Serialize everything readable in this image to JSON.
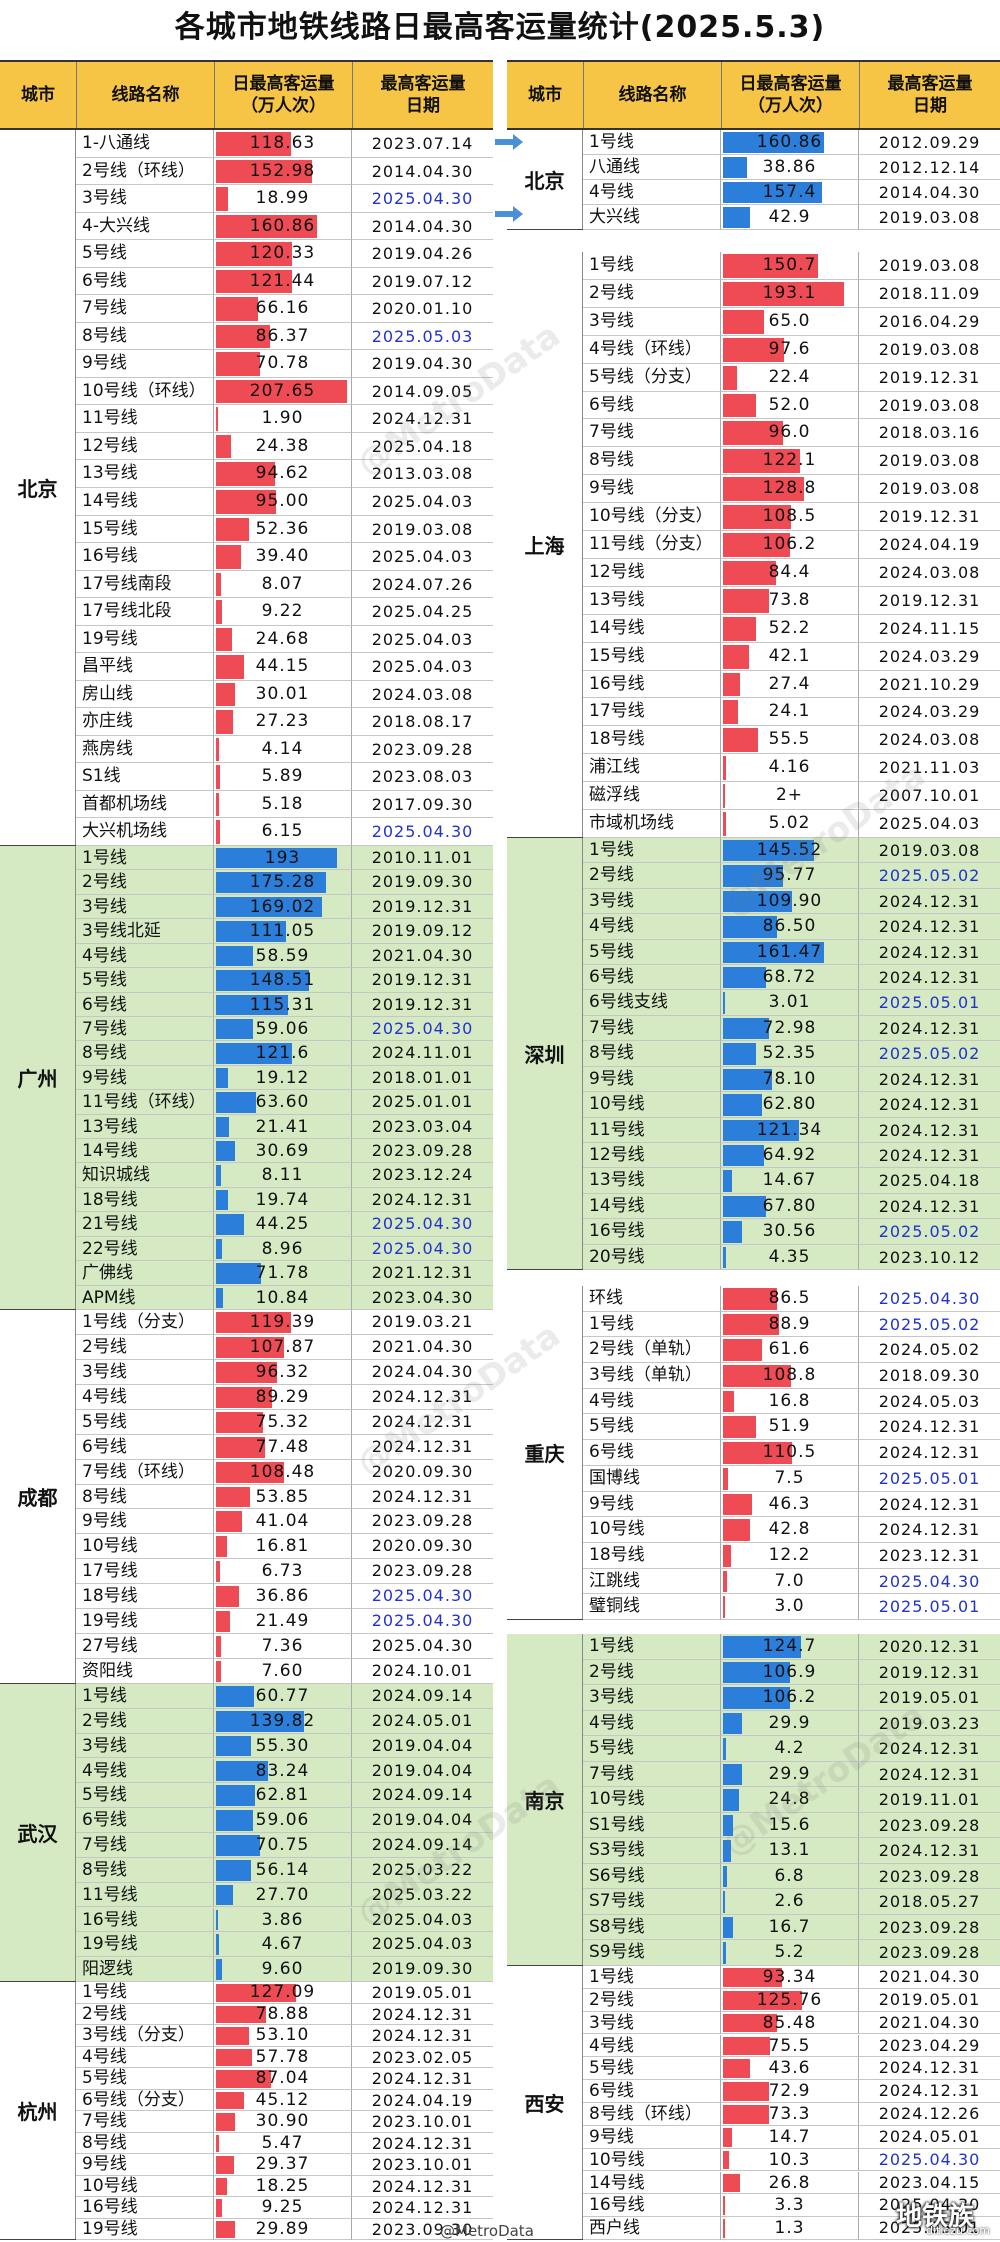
{
  "title": "各城市地铁线路日最高客运量统计(2025.5.3)",
  "headers": [
    "城市",
    "线路名称",
    "日最高客运量\n（万人次）",
    "最高客运量\n日期"
  ],
  "colors": {
    "red_bar": "#ef4b55",
    "blue_bar": "#2b7fdb",
    "header_bg": "#f6c545",
    "green_bg": "#d5e9c3",
    "highlight_date": "#2233cc"
  },
  "left": [
    {
      "city": "北京",
      "bg": "white",
      "color": "red",
      "rows": [
        {
          "name": "1-八通线",
          "value": "118.63",
          "date": "2023.07.14"
        },
        {
          "name": "2号线（环线）",
          "value": "152.98",
          "date": "2014.04.30"
        },
        {
          "name": "3号线",
          "value": "18.99",
          "date": "2025.04.30",
          "hl": true
        },
        {
          "name": "4-大兴线",
          "value": "160.86",
          "date": "2014.04.30"
        },
        {
          "name": "5号线",
          "value": "120.33",
          "date": "2019.04.26"
        },
        {
          "name": "6号线",
          "value": "121.44",
          "date": "2019.07.12"
        },
        {
          "name": "7号线",
          "value": "66.16",
          "date": "2020.01.10"
        },
        {
          "name": "8号线",
          "value": "86.37",
          "date": "2025.05.03",
          "hl": true
        },
        {
          "name": "9号线",
          "value": "70.78",
          "date": "2019.04.30"
        },
        {
          "name": "10号线（环线）",
          "value": "207.65",
          "date": "2014.09.05"
        },
        {
          "name": "11号线",
          "value": "1.90",
          "date": "2024.12.31"
        },
        {
          "name": "12号线",
          "value": "24.38",
          "date": "2025.04.18"
        },
        {
          "name": "13号线",
          "value": "94.62",
          "date": "2013.03.08"
        },
        {
          "name": "14号线",
          "value": "95.00",
          "date": "2025.04.03"
        },
        {
          "name": "15号线",
          "value": "52.36",
          "date": "2019.03.08"
        },
        {
          "name": "16号线",
          "value": "39.40",
          "date": "2025.04.03"
        },
        {
          "name": "17号线南段",
          "value": "8.07",
          "date": "2024.07.26"
        },
        {
          "name": "17号线北段",
          "value": "9.22",
          "date": "2025.04.25"
        },
        {
          "name": "19号线",
          "value": "24.68",
          "date": "2025.04.03"
        },
        {
          "name": "昌平线",
          "value": "44.15",
          "date": "2025.04.03"
        },
        {
          "name": "房山线",
          "value": "30.01",
          "date": "2024.03.08"
        },
        {
          "name": "亦庄线",
          "value": "27.23",
          "date": "2018.08.17"
        },
        {
          "name": "燕房线",
          "value": "4.14",
          "date": "2023.09.28"
        },
        {
          "name": "S1线",
          "value": "5.89",
          "date": "2023.08.03"
        },
        {
          "name": "首都机场线",
          "value": "5.18",
          "date": "2017.09.30"
        },
        {
          "name": "大兴机场线",
          "value": "6.15",
          "date": "2025.04.30",
          "hl": true
        }
      ]
    },
    {
      "city": "广州",
      "bg": "green",
      "color": "blue",
      "rows": [
        {
          "name": "1号线",
          "value": "193",
          "date": "2010.11.01"
        },
        {
          "name": "2号线",
          "value": "175.28",
          "date": "2019.09.30"
        },
        {
          "name": "3号线",
          "value": "169.02",
          "date": "2019.12.31"
        },
        {
          "name": "3号线北延",
          "value": "111.05",
          "date": "2019.09.12"
        },
        {
          "name": "4号线",
          "value": "58.59",
          "date": "2021.04.30"
        },
        {
          "name": "5号线",
          "value": "148.51",
          "date": "2019.12.31"
        },
        {
          "name": "6号线",
          "value": "115.31",
          "date": "2019.12.31"
        },
        {
          "name": "7号线",
          "value": "59.06",
          "date": "2025.04.30",
          "hl": true
        },
        {
          "name": "8号线",
          "value": "121.6",
          "date": "2024.11.01"
        },
        {
          "name": "9号线",
          "value": "19.12",
          "date": "2018.01.01"
        },
        {
          "name": "11号线（环线）",
          "value": "63.60",
          "date": "2025.01.01"
        },
        {
          "name": "13号线",
          "value": "21.41",
          "date": "2023.03.04"
        },
        {
          "name": "14号线",
          "value": "30.69",
          "date": "2023.09.28"
        },
        {
          "name": "知识城线",
          "value": "8.11",
          "date": "2023.12.24"
        },
        {
          "name": "18号线",
          "value": "19.74",
          "date": "2024.12.31"
        },
        {
          "name": "21号线",
          "value": "44.25",
          "date": "2025.04.30",
          "hl": true
        },
        {
          "name": "22号线",
          "value": "8.96",
          "date": "2025.04.30",
          "hl": true
        },
        {
          "name": "广佛线",
          "value": "71.78",
          "date": "2021.12.31"
        },
        {
          "name": "APM线",
          "value": "10.84",
          "date": "2023.04.30"
        }
      ]
    },
    {
      "city": "成都",
      "bg": "white",
      "color": "red",
      "rows": [
        {
          "name": "1号线（分支）",
          "value": "119.39",
          "date": "2019.03.21"
        },
        {
          "name": "2号线",
          "value": "107.87",
          "date": "2021.04.30"
        },
        {
          "name": "3号线",
          "value": "96.32",
          "date": "2024.04.30"
        },
        {
          "name": "4号线",
          "value": "89.29",
          "date": "2024.12.31"
        },
        {
          "name": "5号线",
          "value": "75.32",
          "date": "2024.12.31"
        },
        {
          "name": "6号线",
          "value": "77.48",
          "date": "2024.12.31"
        },
        {
          "name": "7号线（环线）",
          "value": "108.48",
          "date": "2020.09.30"
        },
        {
          "name": "8号线",
          "value": "53.85",
          "date": "2024.12.31"
        },
        {
          "name": "9号线",
          "value": "41.04",
          "date": "2023.09.28"
        },
        {
          "name": "10号线",
          "value": "16.81",
          "date": "2020.09.30"
        },
        {
          "name": "17号线",
          "value": "6.73",
          "date": "2023.09.28"
        },
        {
          "name": "18号线",
          "value": "36.86",
          "date": "2025.04.30",
          "hl": true
        },
        {
          "name": "19号线",
          "value": "21.49",
          "date": "2025.04.30",
          "hl": true
        },
        {
          "name": "27号线",
          "value": "7.36",
          "date": "2025.04.30"
        },
        {
          "name": "资阳线",
          "value": "7.60",
          "date": "2024.10.01"
        }
      ]
    },
    {
      "city": "武汉",
      "bg": "green",
      "color": "blue",
      "rows": [
        {
          "name": "1号线",
          "value": "60.77",
          "date": "2024.09.14"
        },
        {
          "name": "2号线",
          "value": "139.82",
          "date": "2024.05.01"
        },
        {
          "name": "3号线",
          "value": "55.30",
          "date": "2019.04.04"
        },
        {
          "name": "4号线",
          "value": "83.24",
          "date": "2019.04.04"
        },
        {
          "name": "5号线",
          "value": "62.81",
          "date": "2024.09.14"
        },
        {
          "name": "6号线",
          "value": "59.06",
          "date": "2019.04.04"
        },
        {
          "name": "7号线",
          "value": "70.75",
          "date": "2024.09.14"
        },
        {
          "name": "8号线",
          "value": "56.14",
          "date": "2025.03.22"
        },
        {
          "name": "11号线",
          "value": "27.70",
          "date": "2025.03.22"
        },
        {
          "name": "16号线",
          "value": "3.86",
          "date": "2025.04.03"
        },
        {
          "name": "19号线",
          "value": "4.67",
          "date": "2025.04.03"
        },
        {
          "name": "阳逻线",
          "value": "9.60",
          "date": "2019.09.30"
        }
      ]
    },
    {
      "city": "杭州",
      "bg": "white",
      "color": "red",
      "rows": [
        {
          "name": "1号线",
          "value": "127.09",
          "date": "2019.05.01"
        },
        {
          "name": "2号线",
          "value": "78.88",
          "date": "2024.12.31"
        },
        {
          "name": "3号线（分支）",
          "value": "53.10",
          "date": "2024.12.31"
        },
        {
          "name": "4号线",
          "value": "57.78",
          "date": "2023.02.05"
        },
        {
          "name": "5号线",
          "value": "87.04",
          "date": "2024.12.31"
        },
        {
          "name": "6号线（分支）",
          "value": "45.12",
          "date": "2024.04.19"
        },
        {
          "name": "7号线",
          "value": "30.90",
          "date": "2023.10.01"
        },
        {
          "name": "8号线",
          "value": "5.47",
          "date": "2024.12.31"
        },
        {
          "name": "9号线",
          "value": "29.37",
          "date": "2023.10.01"
        },
        {
          "name": "10号线",
          "value": "18.25",
          "date": "2024.12.31"
        },
        {
          "name": "16号线",
          "value": "9.25",
          "date": "2024.12.31"
        },
        {
          "name": "19号线",
          "value": "29.89",
          "date": "2023.09.30"
        }
      ]
    }
  ],
  "right": [
    {
      "city": "北京",
      "bg": "white",
      "color": "blue",
      "rows": [
        {
          "name": "1号线",
          "value": "160.86",
          "date": "2012.09.29"
        },
        {
          "name": "八通线",
          "value": "38.86",
          "date": "2012.12.14"
        },
        {
          "name": "4号线",
          "value": "157.4",
          "date": "2014.04.30"
        },
        {
          "name": "大兴线",
          "value": "42.9",
          "date": "2019.03.08"
        }
      ]
    },
    {
      "city": "上海",
      "bg": "white",
      "color": "red",
      "rows": [
        {
          "name": "1号线",
          "value": "150.7",
          "date": "2019.03.08"
        },
        {
          "name": "2号线",
          "value": "193.1",
          "date": "2018.11.09"
        },
        {
          "name": "3号线",
          "value": "65.0",
          "date": "2016.04.29"
        },
        {
          "name": "4号线（环线）",
          "value": "97.6",
          "date": "2019.03.08"
        },
        {
          "name": "5号线（分支）",
          "value": "22.4",
          "date": "2019.12.31"
        },
        {
          "name": "6号线",
          "value": "52.0",
          "date": "2019.03.08"
        },
        {
          "name": "7号线",
          "value": "96.0",
          "date": "2018.03.16"
        },
        {
          "name": "8号线",
          "value": "122.1",
          "date": "2019.03.08"
        },
        {
          "name": "9号线",
          "value": "128.8",
          "date": "2019.03.08"
        },
        {
          "name": "10号线（分支）",
          "value": "108.5",
          "date": "2019.12.31"
        },
        {
          "name": "11号线（分支）",
          "value": "106.2",
          "date": "2024.04.19"
        },
        {
          "name": "12号线",
          "value": "84.4",
          "date": "2024.03.08"
        },
        {
          "name": "13号线",
          "value": "73.8",
          "date": "2019.12.31"
        },
        {
          "name": "14号线",
          "value": "52.2",
          "date": "2024.11.15"
        },
        {
          "name": "15号线",
          "value": "42.1",
          "date": "2024.03.29"
        },
        {
          "name": "16号线",
          "value": "27.4",
          "date": "2021.10.29"
        },
        {
          "name": "17号线",
          "value": "24.1",
          "date": "2024.03.29"
        },
        {
          "name": "18号线",
          "value": "55.5",
          "date": "2024.03.08"
        },
        {
          "name": "浦江线",
          "value": "4.16",
          "date": "2021.11.03"
        },
        {
          "name": "磁浮线",
          "value": "2+",
          "date": "2007.10.01"
        },
        {
          "name": "市域机场线",
          "value": "5.02",
          "date": "2025.04.03"
        }
      ]
    },
    {
      "city": "深圳",
      "bg": "green",
      "color": "blue",
      "rows": [
        {
          "name": "1号线",
          "value": "145.52",
          "date": "2019.03.08"
        },
        {
          "name": "2号线",
          "value": "95.77",
          "date": "2025.05.02",
          "hl": true
        },
        {
          "name": "3号线",
          "value": "109.90",
          "date": "2024.12.31"
        },
        {
          "name": "4号线",
          "value": "86.50",
          "date": "2024.12.31"
        },
        {
          "name": "5号线",
          "value": "161.47",
          "date": "2024.12.31"
        },
        {
          "name": "6号线",
          "value": "68.72",
          "date": "2024.12.31"
        },
        {
          "name": "6号线支线",
          "value": "3.01",
          "date": "2025.05.01",
          "hl": true
        },
        {
          "name": "7号线",
          "value": "72.98",
          "date": "2024.12.31"
        },
        {
          "name": "8号线",
          "value": "52.35",
          "date": "2025.05.02",
          "hl": true
        },
        {
          "name": "9号线",
          "value": "78.10",
          "date": "2024.12.31"
        },
        {
          "name": "10号线",
          "value": "62.80",
          "date": "2024.12.31"
        },
        {
          "name": "11号线",
          "value": "121.34",
          "date": "2024.12.31"
        },
        {
          "name": "12号线",
          "value": "64.92",
          "date": "2024.12.31"
        },
        {
          "name": "13号线",
          "value": "14.67",
          "date": "2025.04.18"
        },
        {
          "name": "14号线",
          "value": "67.80",
          "date": "2024.12.31"
        },
        {
          "name": "16号线",
          "value": "30.56",
          "date": "2025.05.02",
          "hl": true
        },
        {
          "name": "20号线",
          "value": "4.35",
          "date": "2023.10.12"
        }
      ]
    },
    {
      "city": "重庆",
      "bg": "white",
      "color": "red",
      "rows": [
        {
          "name": "环线",
          "value": "86.5",
          "date": "2025.04.30",
          "hl": true
        },
        {
          "name": "1号线",
          "value": "88.9",
          "date": "2025.05.02",
          "hl": true
        },
        {
          "name": "2号线（单轨）",
          "value": "61.6",
          "date": "2024.05.02"
        },
        {
          "name": "3号线（单轨）",
          "value": "108.8",
          "date": "2018.09.30"
        },
        {
          "name": "4号线",
          "value": "16.8",
          "date": "2024.05.03"
        },
        {
          "name": "5号线",
          "value": "51.9",
          "date": "2024.12.31"
        },
        {
          "name": "6号线",
          "value": "110.5",
          "date": "2024.12.31"
        },
        {
          "name": "国博线",
          "value": "7.5",
          "date": "2025.05.01",
          "hl": true
        },
        {
          "name": "9号线",
          "value": "46.3",
          "date": "2024.12.31"
        },
        {
          "name": "10号线",
          "value": "42.8",
          "date": "2024.12.31"
        },
        {
          "name": "18号线",
          "value": "12.2",
          "date": "2023.12.31"
        },
        {
          "name": "江跳线",
          "value": "7.0",
          "date": "2025.04.30",
          "hl": true
        },
        {
          "name": "璧铜线",
          "value": "3.0",
          "date": "2025.05.01",
          "hl": true
        }
      ]
    },
    {
      "city": "南京",
      "bg": "green",
      "color": "blue",
      "rows": [
        {
          "name": "1号线",
          "value": "124.7",
          "date": "2020.12.31"
        },
        {
          "name": "2号线",
          "value": "106.9",
          "date": "2019.12.31"
        },
        {
          "name": "3号线",
          "value": "106.2",
          "date": "2019.05.01"
        },
        {
          "name": "4号线",
          "value": "29.9",
          "date": "2019.03.23"
        },
        {
          "name": "5号线",
          "value": "4.2",
          "date": "2024.12.31"
        },
        {
          "name": "7号线",
          "value": "29.9",
          "date": "2024.12.31"
        },
        {
          "name": "10号线",
          "value": "24.8",
          "date": "2019.11.01"
        },
        {
          "name": "S1号线",
          "value": "15.6",
          "date": "2023.09.28"
        },
        {
          "name": "S3号线",
          "value": "13.1",
          "date": "2024.12.31"
        },
        {
          "name": "S6号线",
          "value": "6.8",
          "date": "2023.09.28"
        },
        {
          "name": "S7号线",
          "value": "2.6",
          "date": "2018.05.27"
        },
        {
          "name": "S8号线",
          "value": "16.7",
          "date": "2023.09.28"
        },
        {
          "name": "S9号线",
          "value": "5.2",
          "date": "2023.09.28"
        }
      ]
    },
    {
      "city": "西安",
      "bg": "white",
      "color": "red",
      "rows": [
        {
          "name": "1号线",
          "value": "93.34",
          "date": "2021.04.30"
        },
        {
          "name": "2号线",
          "value": "125.76",
          "date": "2019.05.01"
        },
        {
          "name": "3号线",
          "value": "85.48",
          "date": "2021.04.30"
        },
        {
          "name": "4号线",
          "value": "75.5",
          "date": "2023.04.29"
        },
        {
          "name": "5号线",
          "value": "43.6",
          "date": "2024.12.31"
        },
        {
          "name": "6号线",
          "value": "72.9",
          "date": "2024.12.31"
        },
        {
          "name": "8号线（环线）",
          "value": "73.3",
          "date": "2024.12.26"
        },
        {
          "name": "9号线",
          "value": "14.7",
          "date": "2024.05.01"
        },
        {
          "name": "10号线",
          "value": "10.3",
          "date": "2025.04.30",
          "hl": true
        },
        {
          "name": "14号线",
          "value": "26.8",
          "date": "2023.04.15"
        },
        {
          "name": "16号线",
          "value": "3.3",
          "date": "2025.04.30"
        },
        {
          "name": "西户线",
          "value": "1.3",
          "date": "2025.05.01"
        }
      ]
    }
  ],
  "watermark": "@MetroData",
  "footer_credit": "@MetroData",
  "logo": {
    "main": "地铁族",
    "sub": "ditiezu.com"
  }
}
